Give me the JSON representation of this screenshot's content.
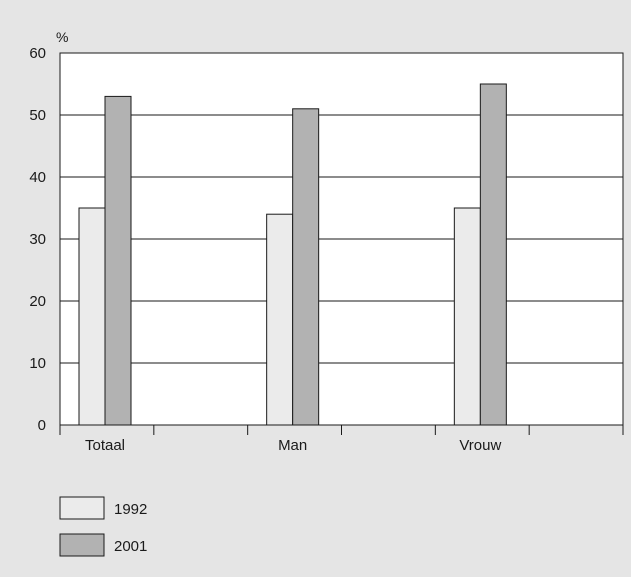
{
  "chart_data": {
    "type": "bar",
    "title": "",
    "ylabel": "%",
    "xlabel": "",
    "ylim": [
      0,
      60
    ],
    "yticks": [
      0,
      10,
      20,
      30,
      40,
      50,
      60
    ],
    "categories": [
      "Totaal",
      "Man",
      "Vrouw"
    ],
    "series": [
      {
        "name": "1992",
        "values": [
          35,
          34,
          35
        ],
        "color": "#ebebeb"
      },
      {
        "name": "2001",
        "values": [
          53,
          51,
          55
        ],
        "color": "#b2b2b2"
      }
    ],
    "grid": "horizontal",
    "legend_position": "bottom-left",
    "background_color": "#e5e5e5",
    "plot_background_color": "#ffffff"
  }
}
